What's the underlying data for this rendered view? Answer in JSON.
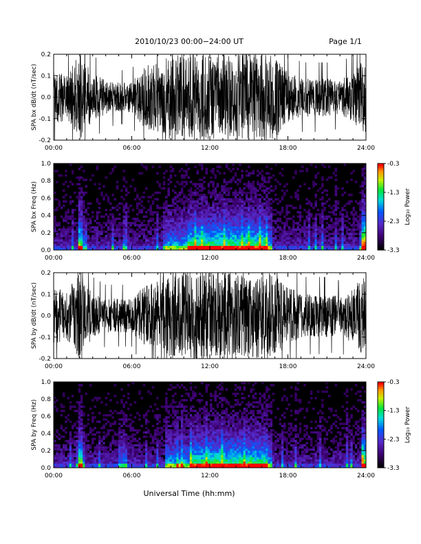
{
  "header": {
    "title": "2010/10/23  00:00−24:00 UT",
    "page": "Page 1/1"
  },
  "footer": {
    "xlabel": "Universal Time (hh:mm)"
  },
  "colorbar": {
    "label": "Log₁₀ Power",
    "ticks": [
      "-0.3",
      "-1.3",
      "-2.3",
      "-3.3"
    ],
    "range": [
      -3.3,
      -0.3
    ]
  },
  "chart_data": [
    {
      "type": "line",
      "ylabel": "SPA bx dB/dt (nT/sec)",
      "xlim": [
        "00:00",
        "24:00"
      ],
      "ylim": [
        -0.2,
        0.2
      ],
      "x_ticks": [
        "00:00",
        "06:00",
        "12:00",
        "18:00",
        "24:00"
      ],
      "y_ticks": [
        "-0.2",
        "-0.1",
        "0.0",
        "0.1",
        "0.2"
      ],
      "envelope_hours": [
        0,
        1,
        2,
        3,
        4,
        5,
        6,
        7,
        8,
        9,
        10,
        11,
        12,
        13,
        14,
        15,
        16,
        17,
        18,
        19,
        20,
        21,
        22,
        23,
        24
      ],
      "envelope_amplitude": [
        0.12,
        0.11,
        0.2,
        0.11,
        0.08,
        0.07,
        0.07,
        0.15,
        0.16,
        0.2,
        0.2,
        0.2,
        0.2,
        0.2,
        0.2,
        0.2,
        0.2,
        0.2,
        0.12,
        0.09,
        0.09,
        0.09,
        0.08,
        0.12,
        0.2
      ],
      "color": "#000000"
    },
    {
      "type": "heatmap",
      "ylabel": "SPA bx Freq (Hz)",
      "xlim": [
        "00:00",
        "24:00"
      ],
      "ylim": [
        0.0,
        1.0
      ],
      "x_ticks": [
        "00:00",
        "06:00",
        "12:00",
        "18:00",
        "24:00"
      ],
      "y_ticks": [
        "0.0",
        "0.2",
        "0.4",
        "0.6",
        "0.8",
        "1.0"
      ],
      "zlim": [
        -3.3,
        -0.3
      ]
    },
    {
      "type": "line",
      "ylabel": "SPA by dB/dt (nT/sec)",
      "xlim": [
        "00:00",
        "24:00"
      ],
      "ylim": [
        -0.2,
        0.2
      ],
      "x_ticks": [
        "00:00",
        "06:00",
        "12:00",
        "18:00",
        "24:00"
      ],
      "y_ticks": [
        "-0.2",
        "-0.1",
        "0.0",
        "0.1",
        "0.2"
      ],
      "envelope_hours": [
        0,
        1,
        2,
        3,
        4,
        5,
        6,
        7,
        8,
        9,
        10,
        11,
        12,
        13,
        14,
        15,
        16,
        17,
        18,
        19,
        20,
        21,
        22,
        23,
        24
      ],
      "envelope_amplitude": [
        0.13,
        0.12,
        0.2,
        0.1,
        0.08,
        0.08,
        0.08,
        0.14,
        0.16,
        0.2,
        0.2,
        0.2,
        0.2,
        0.2,
        0.2,
        0.2,
        0.2,
        0.2,
        0.14,
        0.1,
        0.1,
        0.1,
        0.09,
        0.13,
        0.2
      ],
      "color": "#000000"
    },
    {
      "type": "heatmap",
      "ylabel": "SPA by Freq (Hz)",
      "xlim": [
        "00:00",
        "24:00"
      ],
      "ylim": [
        0.0,
        1.0
      ],
      "x_ticks": [
        "00:00",
        "06:00",
        "12:00",
        "18:00",
        "24:00"
      ],
      "y_ticks": [
        "0.0",
        "0.2",
        "0.4",
        "0.6",
        "0.8",
        "1.0"
      ],
      "zlim": [
        -3.3,
        -0.3
      ]
    }
  ]
}
